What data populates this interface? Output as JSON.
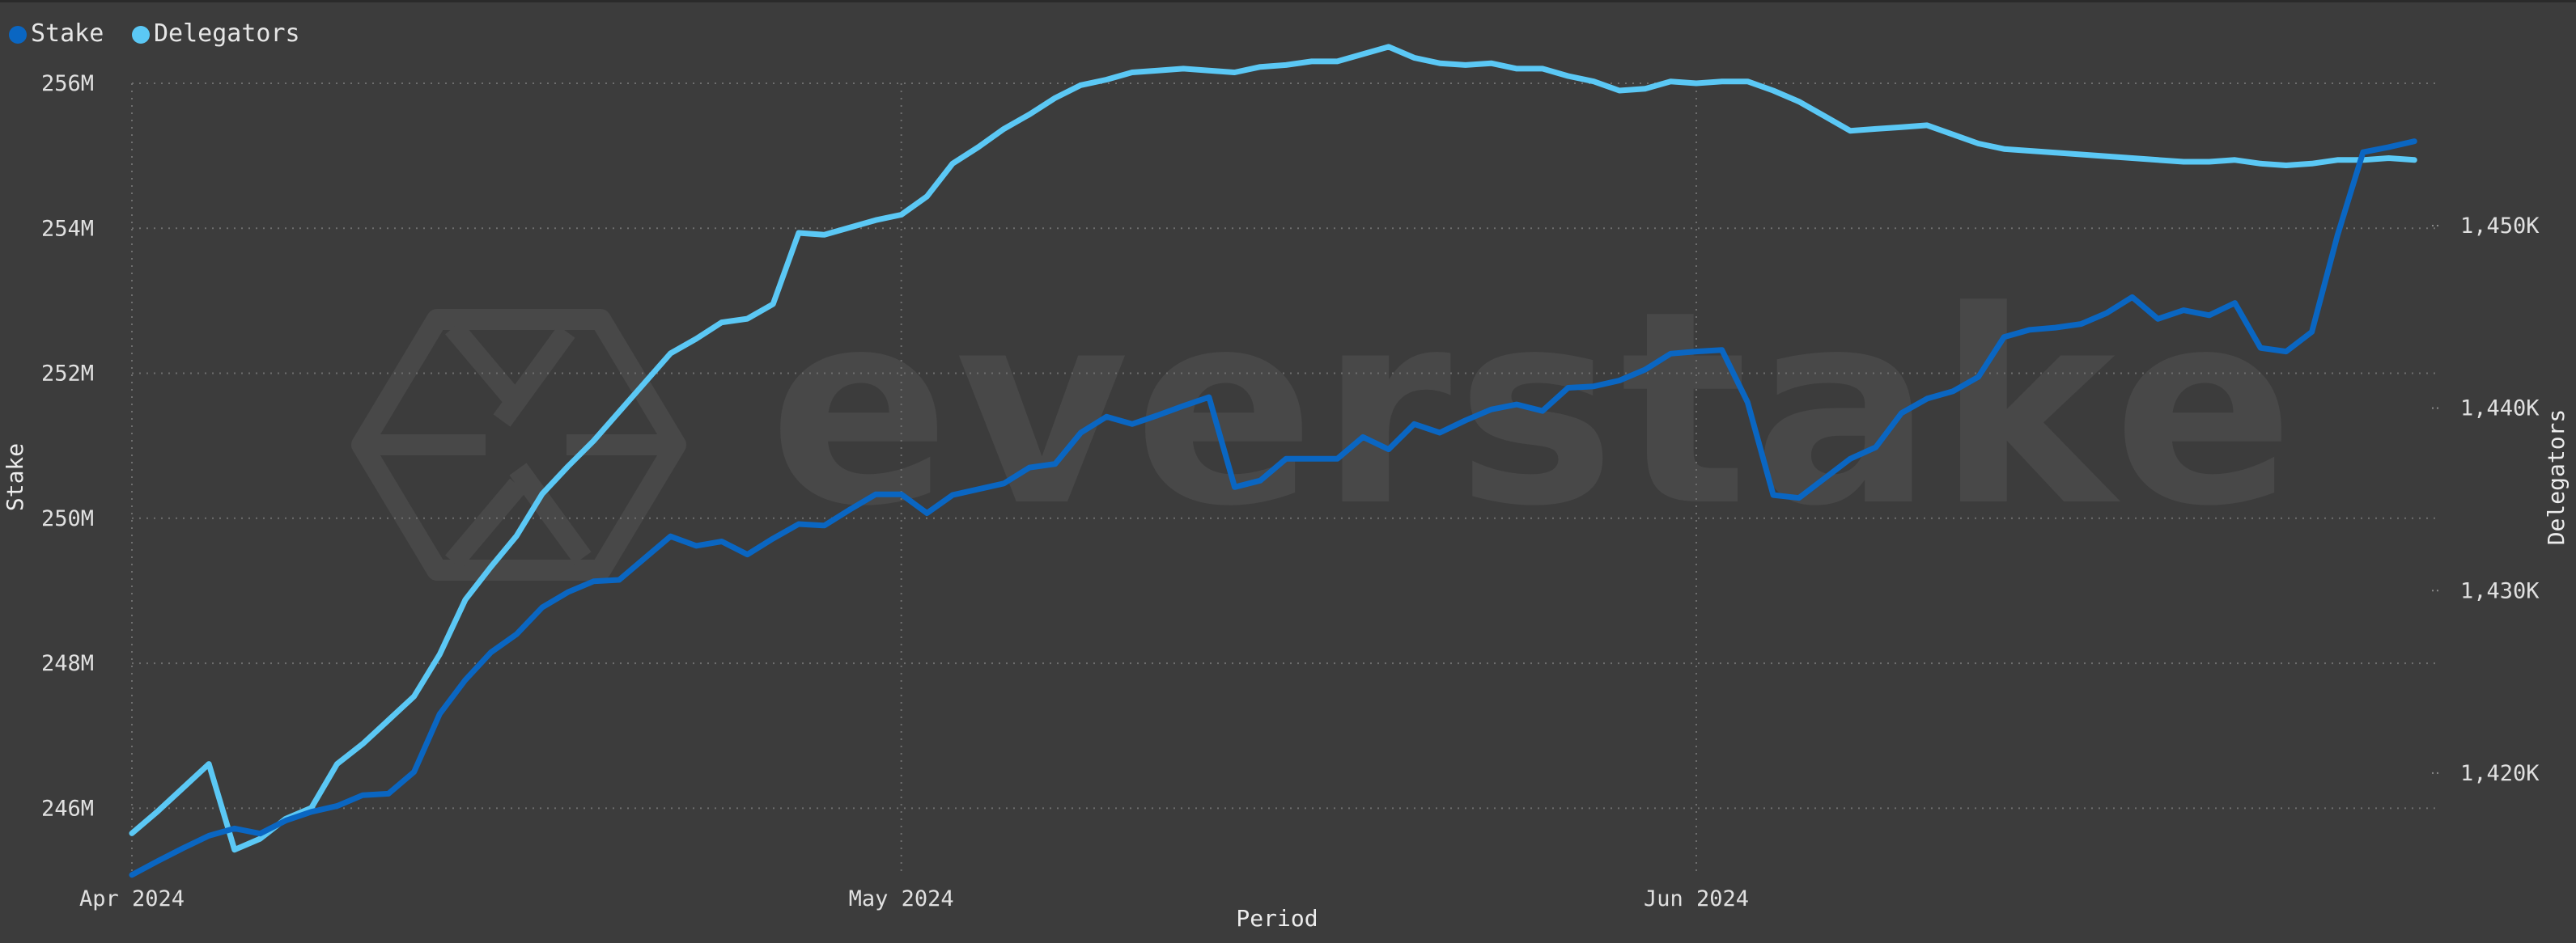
{
  "watermark": {
    "text": "everstake",
    "icon": "everstake-logo-icon"
  },
  "chart_data": {
    "type": "line",
    "title": "",
    "xlabel": "Period",
    "ylabel": "Stake",
    "y2label": "Delegators",
    "x_tick_labels": [
      "Apr 2024",
      "May 2024",
      "Jun 2024"
    ],
    "x_tick_dates": [
      "2024-04-01",
      "2024-05-01",
      "2024-06-01"
    ],
    "xlim": [
      "2024-04-01",
      "2024-06-30"
    ],
    "y_ticks": [
      246,
      248,
      250,
      252,
      254,
      256
    ],
    "y_tick_labels": [
      "246M",
      "248M",
      "250M",
      "252M",
      "254M",
      "256M"
    ],
    "ylim": [
      245.1,
      256.0
    ],
    "y2_ticks": [
      1420,
      1430,
      1440,
      1450
    ],
    "y2_tick_labels": [
      "1,420K",
      "1,430K",
      "1,440K",
      "1,450K"
    ],
    "y2lim": [
      1414.5,
      1457.8
    ],
    "grid": true,
    "legend_position": "top-left",
    "series": [
      {
        "name": "Stake",
        "axis": "left",
        "color": "#0a66c2",
        "points": [
          [
            "2024-04-01",
            245.08
          ],
          [
            "2024-04-02",
            245.27
          ],
          [
            "2024-04-03",
            245.45
          ],
          [
            "2024-04-04",
            245.62
          ],
          [
            "2024-04-05",
            245.72
          ],
          [
            "2024-04-06",
            245.65
          ],
          [
            "2024-04-07",
            245.83
          ],
          [
            "2024-04-08",
            245.95
          ],
          [
            "2024-04-09",
            246.03
          ],
          [
            "2024-04-10",
            246.18
          ],
          [
            "2024-04-11",
            246.2
          ],
          [
            "2024-04-12",
            246.5
          ],
          [
            "2024-04-13",
            247.3
          ],
          [
            "2024-04-14",
            247.77
          ],
          [
            "2024-04-15",
            248.15
          ],
          [
            "2024-04-16",
            248.4
          ],
          [
            "2024-04-17",
            248.77
          ],
          [
            "2024-04-18",
            248.98
          ],
          [
            "2024-04-19",
            249.13
          ],
          [
            "2024-04-20",
            249.15
          ],
          [
            "2024-04-21",
            249.45
          ],
          [
            "2024-04-22",
            249.75
          ],
          [
            "2024-04-23",
            249.62
          ],
          [
            "2024-04-24",
            249.68
          ],
          [
            "2024-04-25",
            249.5
          ],
          [
            "2024-04-26",
            249.72
          ],
          [
            "2024-04-27",
            249.92
          ],
          [
            "2024-04-28",
            249.9
          ],
          [
            "2024-04-29",
            250.12
          ],
          [
            "2024-04-30",
            250.33
          ],
          [
            "2024-05-01",
            250.33
          ],
          [
            "2024-05-02",
            250.07
          ],
          [
            "2024-05-03",
            250.32
          ],
          [
            "2024-05-04",
            250.4
          ],
          [
            "2024-05-05",
            250.48
          ],
          [
            "2024-05-06",
            250.7
          ],
          [
            "2024-05-07",
            250.75
          ],
          [
            "2024-05-08",
            251.18
          ],
          [
            "2024-05-09",
            251.4
          ],
          [
            "2024-05-10",
            251.3
          ],
          [
            "2024-05-11",
            251.42
          ],
          [
            "2024-05-12",
            251.55
          ],
          [
            "2024-05-13",
            251.67
          ],
          [
            "2024-05-14",
            250.43
          ],
          [
            "2024-05-15",
            250.52
          ],
          [
            "2024-05-16",
            250.82
          ],
          [
            "2024-05-17",
            250.82
          ],
          [
            "2024-05-18",
            250.82
          ],
          [
            "2024-05-19",
            251.12
          ],
          [
            "2024-05-20",
            250.95
          ],
          [
            "2024-05-21",
            251.3
          ],
          [
            "2024-05-22",
            251.18
          ],
          [
            "2024-05-23",
            251.35
          ],
          [
            "2024-05-24",
            251.5
          ],
          [
            "2024-05-25",
            251.57
          ],
          [
            "2024-05-26",
            251.48
          ],
          [
            "2024-05-27",
            251.8
          ],
          [
            "2024-05-28",
            251.82
          ],
          [
            "2024-05-29",
            251.9
          ],
          [
            "2024-05-30",
            252.05
          ],
          [
            "2024-05-31",
            252.27
          ],
          [
            "2024-06-01",
            252.3
          ],
          [
            "2024-06-02",
            252.32
          ],
          [
            "2024-06-03",
            251.6
          ],
          [
            "2024-06-04",
            250.32
          ],
          [
            "2024-06-05",
            250.28
          ],
          [
            "2024-06-06",
            250.55
          ],
          [
            "2024-06-07",
            250.82
          ],
          [
            "2024-06-08",
            250.98
          ],
          [
            "2024-06-09",
            251.45
          ],
          [
            "2024-06-10",
            251.65
          ],
          [
            "2024-06-11",
            251.75
          ],
          [
            "2024-06-12",
            251.95
          ],
          [
            "2024-06-13",
            252.5
          ],
          [
            "2024-06-14",
            252.6
          ],
          [
            "2024-06-15",
            252.63
          ],
          [
            "2024-06-16",
            252.68
          ],
          [
            "2024-06-17",
            252.83
          ],
          [
            "2024-06-18",
            253.05
          ],
          [
            "2024-06-19",
            252.75
          ],
          [
            "2024-06-20",
            252.87
          ],
          [
            "2024-06-21",
            252.8
          ],
          [
            "2024-06-22",
            252.97
          ],
          [
            "2024-06-23",
            252.35
          ],
          [
            "2024-06-24",
            252.3
          ],
          [
            "2024-06-25",
            252.57
          ],
          [
            "2024-06-26",
            253.9
          ],
          [
            "2024-06-27",
            255.05
          ],
          [
            "2024-06-28",
            255.12
          ],
          [
            "2024-06-29",
            255.2
          ]
        ]
      },
      {
        "name": "Delegators",
        "axis": "right",
        "color": "#5bc8f5",
        "points": [
          [
            "2024-04-01",
            1416.7
          ],
          [
            "2024-04-02",
            1417.9
          ],
          [
            "2024-04-03",
            1419.2
          ],
          [
            "2024-04-04",
            1420.5
          ],
          [
            "2024-04-05",
            1415.8
          ],
          [
            "2024-04-06",
            1416.4
          ],
          [
            "2024-04-07",
            1417.5
          ],
          [
            "2024-04-08",
            1418.1
          ],
          [
            "2024-04-09",
            1420.5
          ],
          [
            "2024-04-10",
            1421.6
          ],
          [
            "2024-04-11",
            1422.9
          ],
          [
            "2024-04-12",
            1424.2
          ],
          [
            "2024-04-13",
            1426.5
          ],
          [
            "2024-04-14",
            1429.5
          ],
          [
            "2024-04-15",
            1431.3
          ],
          [
            "2024-04-16",
            1433.0
          ],
          [
            "2024-04-17",
            1435.3
          ],
          [
            "2024-04-18",
            1436.8
          ],
          [
            "2024-04-19",
            1438.2
          ],
          [
            "2024-04-20",
            1439.8
          ],
          [
            "2024-04-21",
            1441.4
          ],
          [
            "2024-04-22",
            1443.0
          ],
          [
            "2024-04-23",
            1443.8
          ],
          [
            "2024-04-24",
            1444.7
          ],
          [
            "2024-04-25",
            1444.9
          ],
          [
            "2024-04-26",
            1445.7
          ],
          [
            "2024-04-27",
            1449.6
          ],
          [
            "2024-04-28",
            1449.5
          ],
          [
            "2024-04-29",
            1449.9
          ],
          [
            "2024-04-30",
            1450.3
          ],
          [
            "2024-05-01",
            1450.6
          ],
          [
            "2024-05-02",
            1451.6
          ],
          [
            "2024-05-03",
            1453.4
          ],
          [
            "2024-05-04",
            1454.3
          ],
          [
            "2024-05-05",
            1455.3
          ],
          [
            "2024-05-06",
            1456.1
          ],
          [
            "2024-05-07",
            1457.0
          ],
          [
            "2024-05-08",
            1457.7
          ],
          [
            "2024-05-09",
            1458.0
          ],
          [
            "2024-05-10",
            1458.4
          ],
          [
            "2024-05-11",
            1458.5
          ],
          [
            "2024-05-12",
            1458.6
          ],
          [
            "2024-05-13",
            1458.5
          ],
          [
            "2024-05-14",
            1458.4
          ],
          [
            "2024-05-15",
            1458.7
          ],
          [
            "2024-05-16",
            1458.8
          ],
          [
            "2024-05-17",
            1459.0
          ],
          [
            "2024-05-18",
            1459.0
          ],
          [
            "2024-05-19",
            1459.4
          ],
          [
            "2024-05-20",
            1459.8
          ],
          [
            "2024-05-21",
            1459.2
          ],
          [
            "2024-05-22",
            1458.9
          ],
          [
            "2024-05-23",
            1458.8
          ],
          [
            "2024-05-24",
            1458.9
          ],
          [
            "2024-05-25",
            1458.6
          ],
          [
            "2024-05-26",
            1458.6
          ],
          [
            "2024-05-27",
            1458.2
          ],
          [
            "2024-05-28",
            1457.9
          ],
          [
            "2024-05-29",
            1457.4
          ],
          [
            "2024-05-30",
            1457.5
          ],
          [
            "2024-05-31",
            1457.9
          ],
          [
            "2024-06-01",
            1457.8
          ],
          [
            "2024-06-02",
            1457.9
          ],
          [
            "2024-06-03",
            1457.9
          ],
          [
            "2024-06-04",
            1457.4
          ],
          [
            "2024-06-05",
            1456.8
          ],
          [
            "2024-06-06",
            1456.0
          ],
          [
            "2024-06-07",
            1455.2
          ],
          [
            "2024-06-08",
            1455.3
          ],
          [
            "2024-06-09",
            1455.4
          ],
          [
            "2024-06-10",
            1455.5
          ],
          [
            "2024-06-11",
            1455.0
          ],
          [
            "2024-06-12",
            1454.5
          ],
          [
            "2024-06-13",
            1454.2
          ],
          [
            "2024-06-14",
            1454.1
          ],
          [
            "2024-06-15",
            1454.0
          ],
          [
            "2024-06-16",
            1453.9
          ],
          [
            "2024-06-17",
            1453.8
          ],
          [
            "2024-06-18",
            1453.7
          ],
          [
            "2024-06-19",
            1453.6
          ],
          [
            "2024-06-20",
            1453.5
          ],
          [
            "2024-06-21",
            1453.5
          ],
          [
            "2024-06-22",
            1453.6
          ],
          [
            "2024-06-23",
            1453.4
          ],
          [
            "2024-06-24",
            1453.3
          ],
          [
            "2024-06-25",
            1453.4
          ],
          [
            "2024-06-26",
            1453.6
          ],
          [
            "2024-06-27",
            1453.6
          ],
          [
            "2024-06-28",
            1453.7
          ],
          [
            "2024-06-29",
            1453.6
          ]
        ]
      }
    ]
  }
}
